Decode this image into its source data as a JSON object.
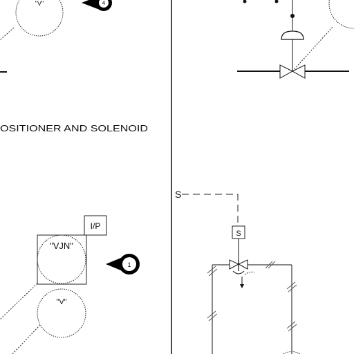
{
  "caption": "OSITIONER AND SOLENOID",
  "instruments": {
    "top_left_bubble": "\"V\"",
    "top_left_marker": "4",
    "positioner_box": "I/P",
    "vjn_bubble": "\"VJN\"",
    "lower_bubble": "\"V\"",
    "right_marker": "1"
  },
  "solenoid": {
    "box_label": "S",
    "signal_label": "S"
  }
}
